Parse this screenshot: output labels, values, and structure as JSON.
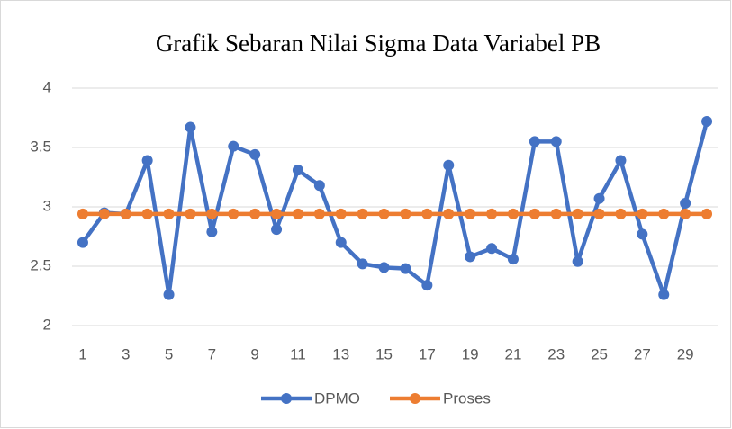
{
  "chart_data": {
    "type": "line",
    "title": "Grafik Sebaran Nilai Sigma Data Variabel PB",
    "categories": [
      1,
      null,
      3,
      null,
      5,
      null,
      7,
      null,
      9,
      null,
      11,
      null,
      13,
      null,
      15,
      null,
      17,
      null,
      19,
      null,
      21,
      null,
      23,
      null,
      25,
      null,
      27,
      null,
      29,
      null
    ],
    "series": [
      {
        "name": "DPMO",
        "color": "#4472c4",
        "values": [
          2.7,
          2.95,
          2.94,
          3.39,
          2.26,
          3.67,
          2.79,
          3.51,
          3.44,
          2.81,
          3.31,
          3.18,
          2.7,
          2.52,
          2.49,
          2.48,
          2.34,
          3.35,
          2.58,
          2.65,
          2.56,
          3.55,
          3.55,
          2.54,
          3.07,
          3.39,
          2.77,
          2.26,
          3.03,
          3.72
        ]
      },
      {
        "name": "Proses",
        "color": "#ed7d31",
        "values": [
          2.94,
          2.94,
          2.94,
          2.94,
          2.94,
          2.94,
          2.94,
          2.94,
          2.94,
          2.94,
          2.94,
          2.94,
          2.94,
          2.94,
          2.94,
          2.94,
          2.94,
          2.94,
          2.94,
          2.94,
          2.94,
          2.94,
          2.94,
          2.94,
          2.94,
          2.94,
          2.94,
          2.94,
          2.94,
          2.94
        ]
      }
    ],
    "ylim": [
      2,
      4
    ],
    "yticks": [
      2,
      {
        "value": 2.5,
        "label": "2.5"
      },
      3,
      {
        "value": 3.5,
        "label": "3.5"
      },
      4
    ],
    "grid": true,
    "legend": "bottom"
  }
}
